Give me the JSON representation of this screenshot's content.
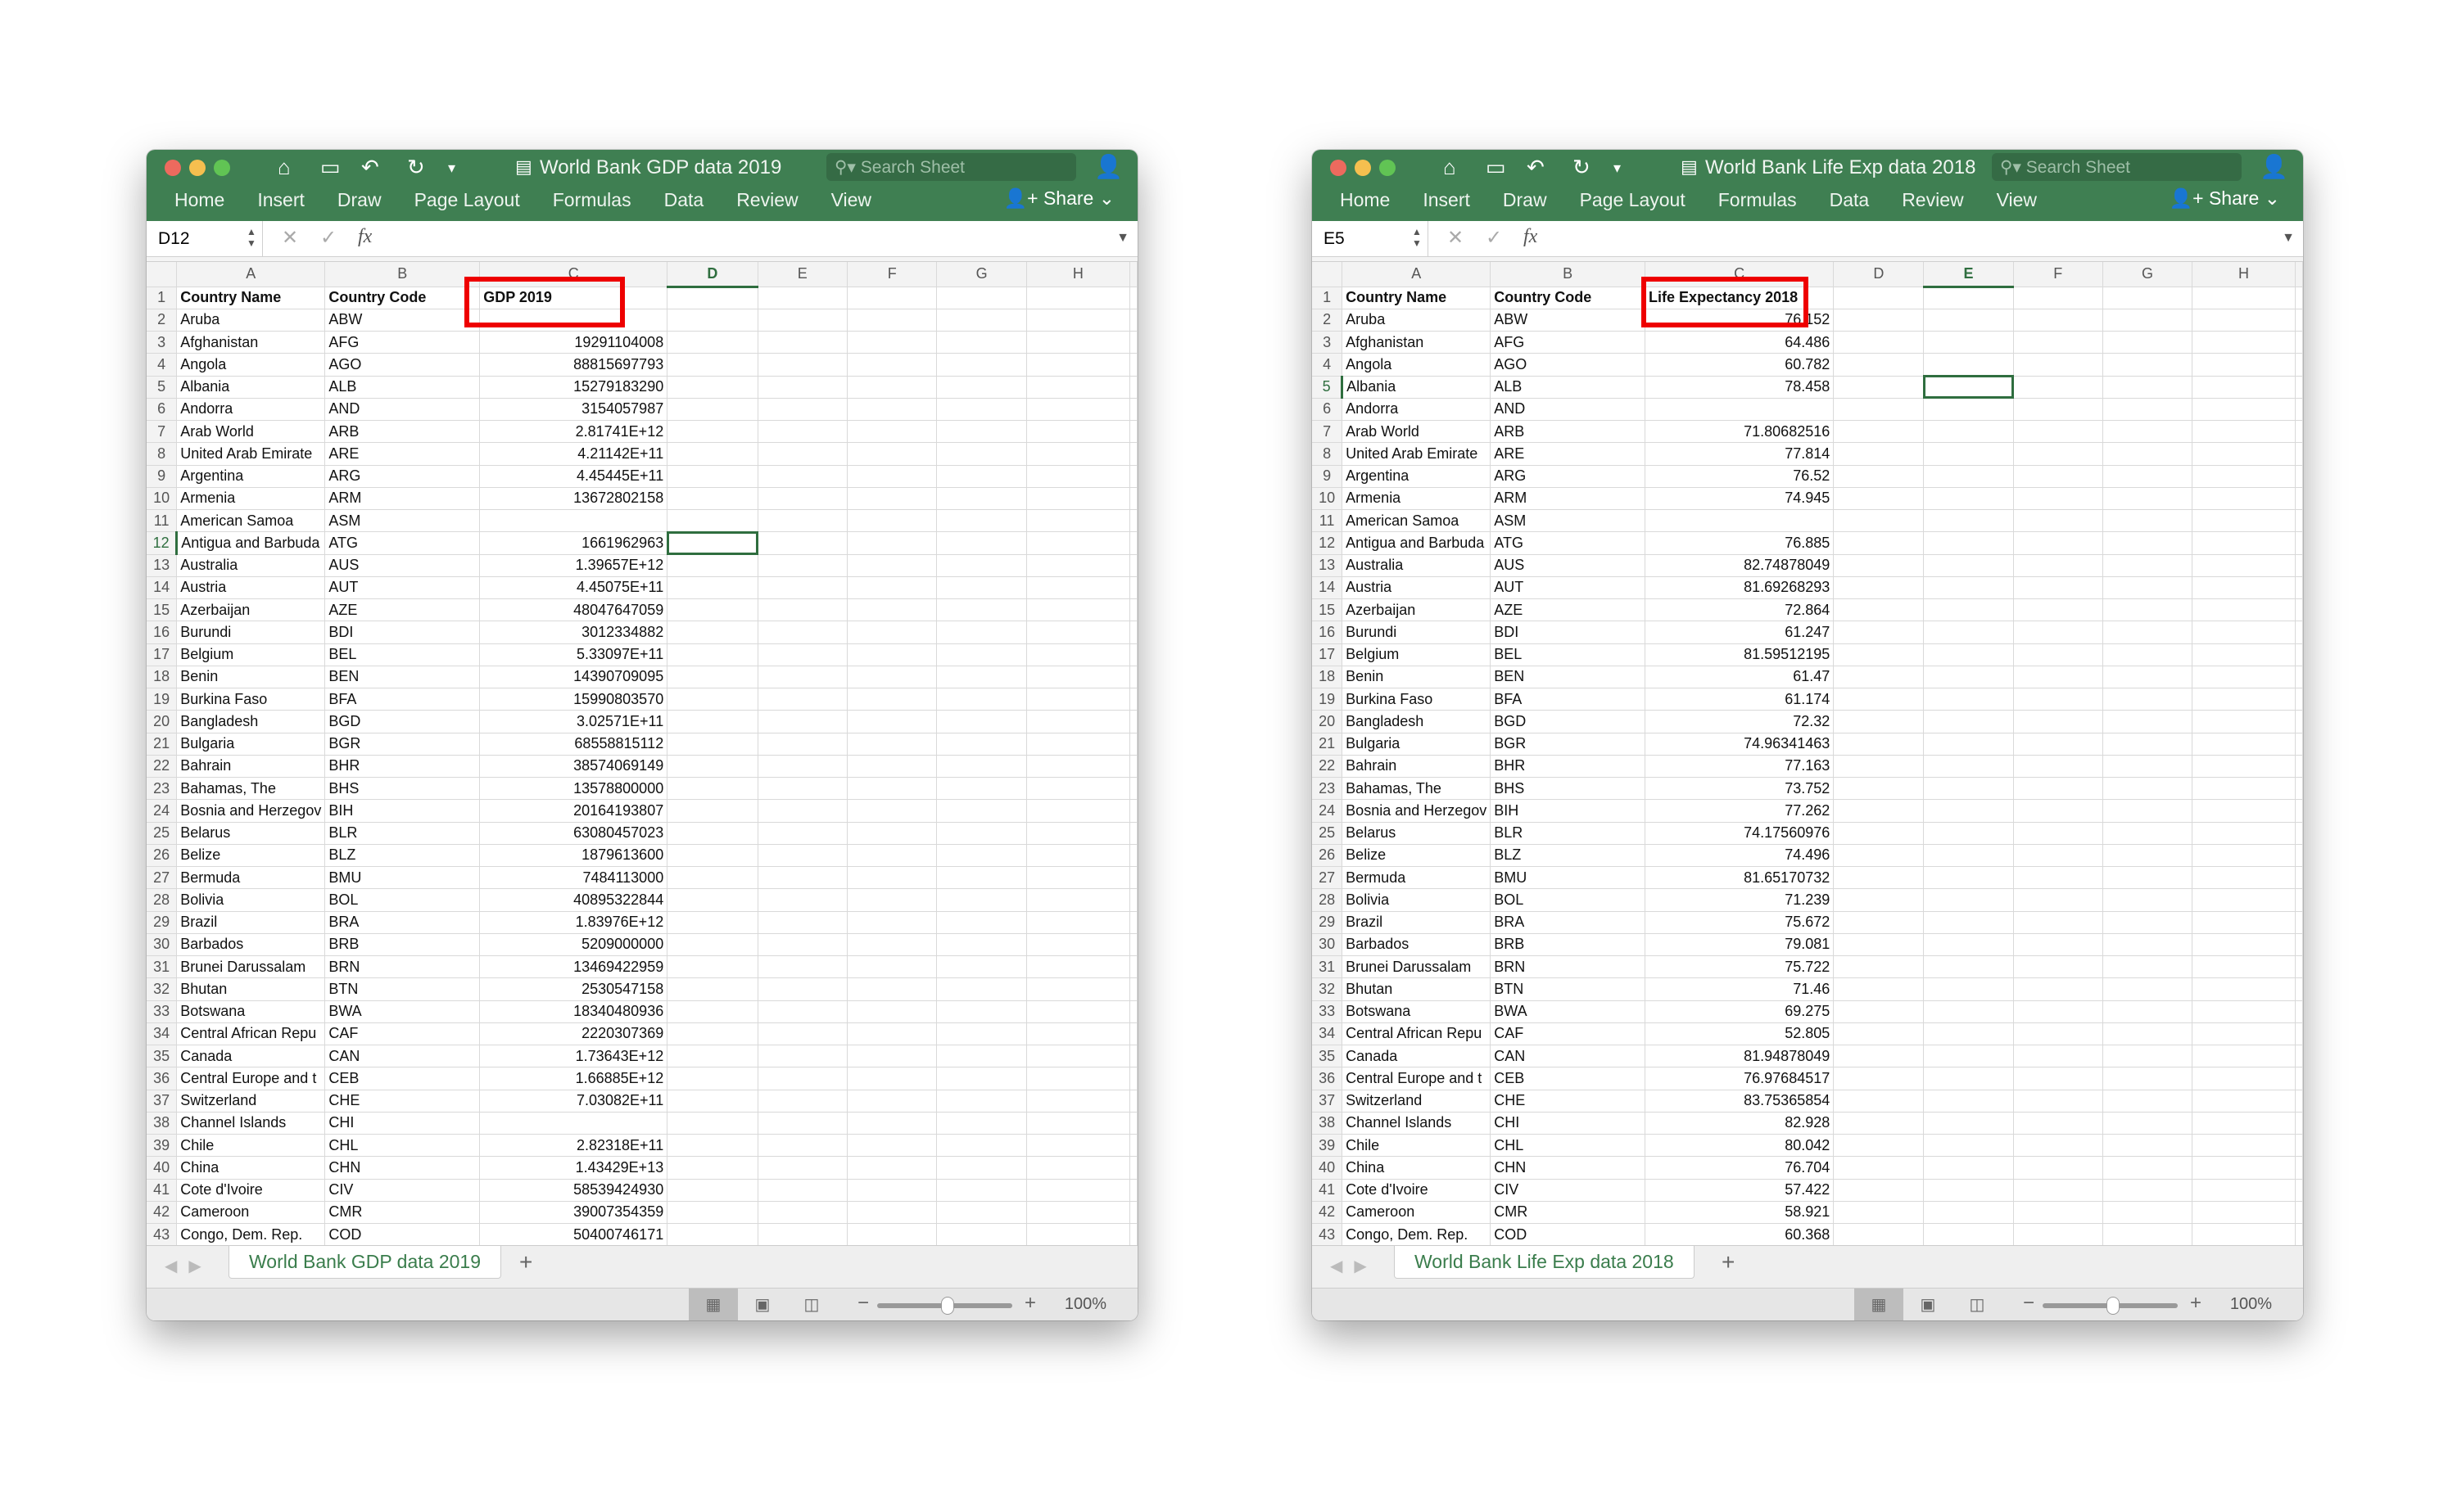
{
  "ribbon_tabs": [
    "Home",
    "Insert",
    "Draw",
    "Page Layout",
    "Formulas",
    "Data",
    "Review",
    "View"
  ],
  "share_label": "Share",
  "search_placeholder": "Search Sheet",
  "columns": [
    "A",
    "B",
    "C",
    "D",
    "E",
    "F",
    "G",
    "H"
  ],
  "zoom_level": "100%",
  "accent_color": "#3f7f52",
  "highlight_color": "#ee0000",
  "countries": [
    [
      "Country Name",
      "Country Code"
    ],
    [
      "Aruba",
      "ABW"
    ],
    [
      "Afghanistan",
      "AFG"
    ],
    [
      "Angola",
      "AGO"
    ],
    [
      "Albania",
      "ALB"
    ],
    [
      "Andorra",
      "AND"
    ],
    [
      "Arab World",
      "ARB"
    ],
    [
      "United Arab Emirate",
      "ARE"
    ],
    [
      "Argentina",
      "ARG"
    ],
    [
      "Armenia",
      "ARM"
    ],
    [
      "American Samoa",
      "ASM"
    ],
    [
      "Antigua and Barbuda",
      "ATG"
    ],
    [
      "Australia",
      "AUS"
    ],
    [
      "Austria",
      "AUT"
    ],
    [
      "Azerbaijan",
      "AZE"
    ],
    [
      "Burundi",
      "BDI"
    ],
    [
      "Belgium",
      "BEL"
    ],
    [
      "Benin",
      "BEN"
    ],
    [
      "Burkina Faso",
      "BFA"
    ],
    [
      "Bangladesh",
      "BGD"
    ],
    [
      "Bulgaria",
      "BGR"
    ],
    [
      "Bahrain",
      "BHR"
    ],
    [
      "Bahamas, The",
      "BHS"
    ],
    [
      "Bosnia and Herzegov",
      "BIH"
    ],
    [
      "Belarus",
      "BLR"
    ],
    [
      "Belize",
      "BLZ"
    ],
    [
      "Bermuda",
      "BMU"
    ],
    [
      "Bolivia",
      "BOL"
    ],
    [
      "Brazil",
      "BRA"
    ],
    [
      "Barbados",
      "BRB"
    ],
    [
      "Brunei Darussalam",
      "BRN"
    ],
    [
      "Bhutan",
      "BTN"
    ],
    [
      "Botswana",
      "BWA"
    ],
    [
      "Central African Repu",
      "CAF"
    ],
    [
      "Canada",
      "CAN"
    ],
    [
      "Central Europe and t",
      "CEB"
    ],
    [
      "Switzerland",
      "CHE"
    ],
    [
      "Channel Islands",
      "CHI"
    ],
    [
      "Chile",
      "CHL"
    ],
    [
      "China",
      "CHN"
    ],
    [
      "Cote d'Ivoire",
      "CIV"
    ],
    [
      "Cameroon",
      "CMR"
    ],
    [
      "Congo, Dem. Rep.",
      "COD"
    ]
  ],
  "windows": [
    {
      "title": "World Bank GDP data 2019",
      "name_box": "D12",
      "sheet_tab": "World Bank GDP data 2019",
      "active_col": "D",
      "active_row": 12,
      "values": [
        "GDP 2019",
        "",
        "19291104008",
        "88815697793",
        "15279183290",
        "3154057987",
        "2.81741E+12",
        "4.21142E+11",
        "4.45445E+11",
        "13672802158",
        "",
        "1661962963",
        "1.39657E+12",
        "4.45075E+11",
        "48047647059",
        "3012334882",
        "5.33097E+11",
        "14390709095",
        "15990803570",
        "3.02571E+11",
        "68558815112",
        "38574069149",
        "13578800000",
        "20164193807",
        "63080457023",
        "1879613600",
        "7484113000",
        "40895322844",
        "1.83976E+12",
        "5209000000",
        "13469422959",
        "2530547158",
        "18340480936",
        "2220307369",
        "1.73643E+12",
        "1.66885E+12",
        "7.03082E+11",
        "",
        "2.82318E+11",
        "1.43429E+13",
        "58539424930",
        "39007354359",
        "50400746171"
      ]
    },
    {
      "title": "World Bank Life Exp data 2018",
      "name_box": "E5",
      "sheet_tab": "World Bank Life Exp data 2018",
      "active_col": "E",
      "active_row": 5,
      "values": [
        "Life Expectancy 2018",
        "76.152",
        "64.486",
        "60.782",
        "78.458",
        "",
        "71.80682516",
        "77.814",
        "76.52",
        "74.945",
        "",
        "76.885",
        "82.74878049",
        "81.69268293",
        "72.864",
        "61.247",
        "81.59512195",
        "61.47",
        "61.174",
        "72.32",
        "74.96341463",
        "77.163",
        "73.752",
        "77.262",
        "74.17560976",
        "74.496",
        "81.65170732",
        "71.239",
        "75.672",
        "79.081",
        "75.722",
        "71.46",
        "69.275",
        "52.805",
        "81.94878049",
        "76.97684517",
        "83.75365854",
        "82.928",
        "80.042",
        "76.704",
        "57.422",
        "58.921",
        "60.368"
      ]
    }
  ]
}
